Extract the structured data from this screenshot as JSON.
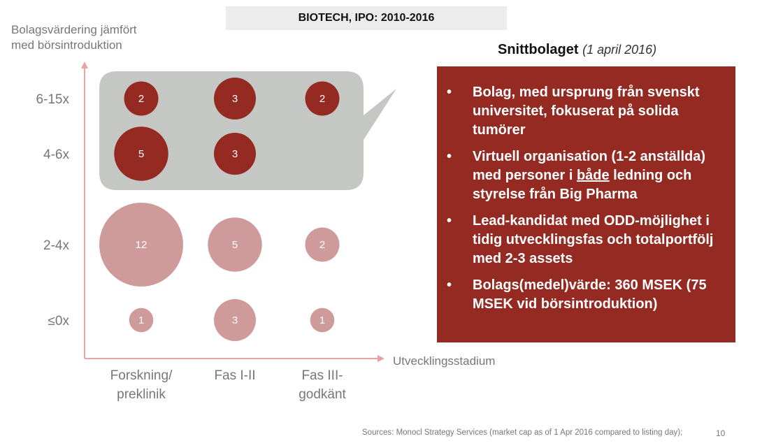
{
  "header": {
    "title": "BIOTECH, IPO: 2010-2016"
  },
  "chart_data": {
    "type": "bubble",
    "ylabel": "Bolagsvärdering jämfört med börsintroduktion",
    "xlabel": "Utvecklingsstadium",
    "x_categories": [
      "Forskning/ preklinik",
      "Fas I-II",
      "Fas III-godkänt"
    ],
    "x_tick_lines": [
      [
        "Forskning/",
        "preklinik"
      ],
      [
        "Fas I-II"
      ],
      [
        "Fas III-",
        "godkänt"
      ]
    ],
    "y_categories": [
      "≤0x",
      "2-4x",
      "4-6x",
      "6-15x"
    ],
    "points": [
      {
        "x": "Forskning/ preklinik",
        "y": "6-15x",
        "count": 2
      },
      {
        "x": "Fas I-II",
        "y": "6-15x",
        "count": 3
      },
      {
        "x": "Fas III-godkänt",
        "y": "6-15x",
        "count": 2
      },
      {
        "x": "Forskning/ preklinik",
        "y": "4-6x",
        "count": 5
      },
      {
        "x": "Fas I-II",
        "y": "4-6x",
        "count": 3
      },
      {
        "x": "Forskning/ preklinik",
        "y": "2-4x",
        "count": 12
      },
      {
        "x": "Fas I-II",
        "y": "2-4x",
        "count": 5
      },
      {
        "x": "Fas III-godkänt",
        "y": "2-4x",
        "count": 2
      },
      {
        "x": "Forskning/ preklinik",
        "y": "≤0x",
        "count": 1
      },
      {
        "x": "Fas I-II",
        "y": "≤0x",
        "count": 3
      },
      {
        "x": "Fas III-godkänt",
        "y": "≤0x",
        "count": 1
      }
    ],
    "highlighted_rows": [
      "6-15x",
      "4-6x"
    ],
    "colors": {
      "highlight": "#952a22",
      "normal": "#cf9b9a",
      "highlight_box": "#c5c7c4",
      "axis": "#e8a3a0"
    }
  },
  "panel": {
    "title": "Snittbolaget",
    "subtitle": "(1 april 2016)",
    "bullet_char": "•",
    "bullets": [
      {
        "text": "Bolag, med ursprung från svenskt universitet, fokuserat på solida tumörer"
      },
      {
        "pre": "Virtuell organisation (1-2 anställda) med personer i ",
        "underline": "både",
        "post": " ledning och styrelse från Big Pharma"
      },
      {
        "text": "Lead-kandidat med ODD-möjlighet i tidig utvecklingsfas och totalportfölj med 2-3 assets"
      },
      {
        "text": "Bolags(medel)värde: 360 MSEK (75 MSEK vid börsintroduktion)"
      }
    ]
  },
  "footer": {
    "source": "Sources: Monocl Strategy Services (market cap as of 1 Apr 2016 compared to listing day);",
    "page": "10"
  }
}
